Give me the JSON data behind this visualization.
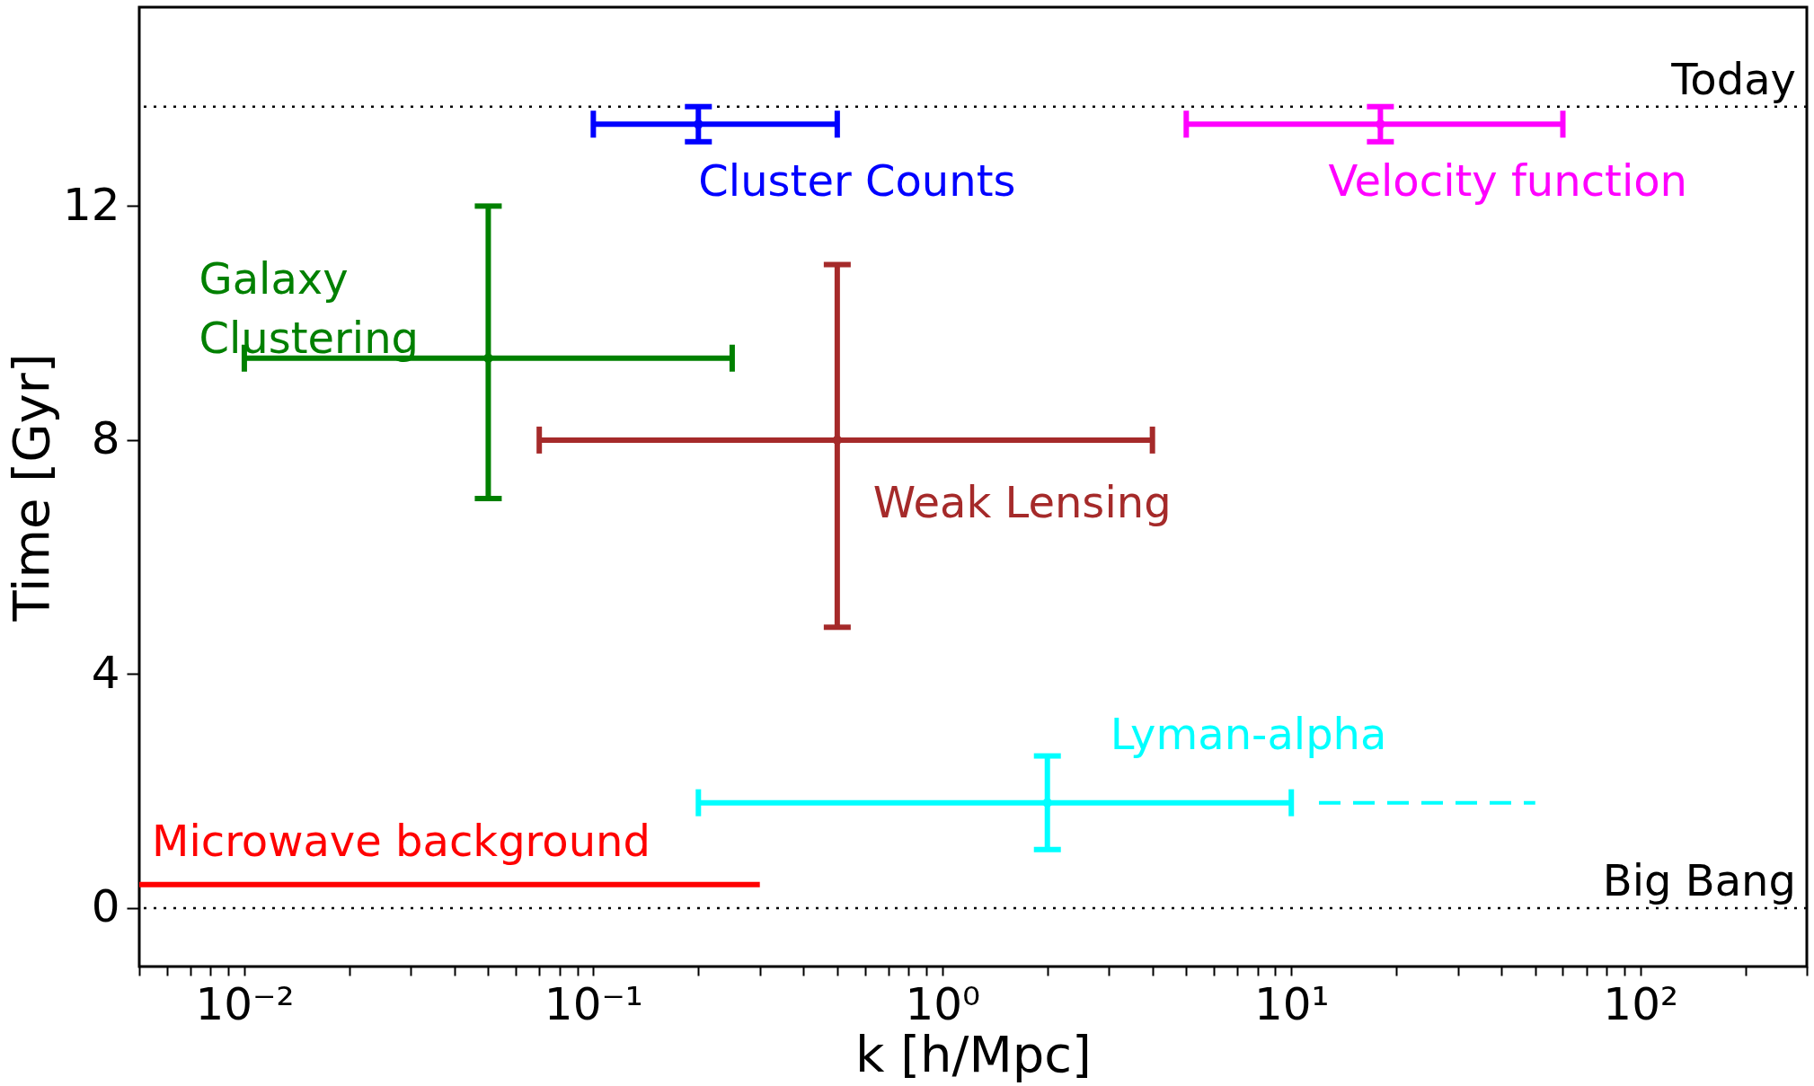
{
  "chart_data": {
    "type": "scatter",
    "xlabel": "k  [h/Mpc]",
    "ylabel": "Time  [Gyr]",
    "log": "x",
    "grid": false,
    "xlim": [
      0.005,
      300
    ],
    "ylim": [
      -1,
      15.4
    ],
    "yticks": [
      0,
      4,
      8,
      12
    ],
    "xticks": [
      {
        "value": 0.005,
        "label": null
      },
      {
        "value": 0.006,
        "label": null
      },
      {
        "value": 0.007,
        "label": null
      },
      {
        "value": 0.008,
        "label": null
      },
      {
        "value": 0.009,
        "label": null
      },
      {
        "value": 0.01,
        "label": "10⁻²"
      },
      {
        "value": 0.02,
        "label": null
      },
      {
        "value": 0.03,
        "label": null
      },
      {
        "value": 0.04,
        "label": null
      },
      {
        "value": 0.05,
        "label": null
      },
      {
        "value": 0.06,
        "label": null
      },
      {
        "value": 0.07,
        "label": null
      },
      {
        "value": 0.08,
        "label": null
      },
      {
        "value": 0.09,
        "label": null
      },
      {
        "value": 0.1,
        "label": "10⁻¹"
      },
      {
        "value": 0.2,
        "label": null
      },
      {
        "value": 0.3,
        "label": null
      },
      {
        "value": 0.4,
        "label": null
      },
      {
        "value": 0.5,
        "label": null
      },
      {
        "value": 0.6,
        "label": null
      },
      {
        "value": 0.7,
        "label": null
      },
      {
        "value": 0.8,
        "label": null
      },
      {
        "value": 0.9,
        "label": null
      },
      {
        "value": 1,
        "label": "10⁰"
      },
      {
        "value": 2,
        "label": null
      },
      {
        "value": 3,
        "label": null
      },
      {
        "value": 4,
        "label": null
      },
      {
        "value": 5,
        "label": null
      },
      {
        "value": 6,
        "label": null
      },
      {
        "value": 7,
        "label": null
      },
      {
        "value": 8,
        "label": null
      },
      {
        "value": 9,
        "label": null
      },
      {
        "value": 10,
        "label": "10¹"
      },
      {
        "value": 20,
        "label": null
      },
      {
        "value": 30,
        "label": null
      },
      {
        "value": 40,
        "label": null
      },
      {
        "value": 50,
        "label": null
      },
      {
        "value": 60,
        "label": null
      },
      {
        "value": 70,
        "label": null
      },
      {
        "value": 80,
        "label": null
      },
      {
        "value": 90,
        "label": null
      },
      {
        "value": 100,
        "label": "10²"
      },
      {
        "value": 200,
        "label": null
      },
      {
        "value": 300,
        "label": null
      }
    ],
    "ref_lines": [
      {
        "axis": "y",
        "value": 13.7,
        "label": "Today",
        "color": "#000000",
        "line_style": "dotted"
      },
      {
        "axis": "y",
        "value": 0,
        "label": "Big Bang",
        "color": "#000000",
        "line_style": "dotted"
      }
    ],
    "series": [
      {
        "name": "Cluster Counts",
        "color": "#0000ff",
        "x": [
          0.2
        ],
        "values": [
          13.4
        ],
        "errors": [
          [
            13.1,
            13.7
          ]
        ],
        "xerrors": [
          [
            0.1,
            0.5
          ]
        ]
      },
      {
        "name": "Velocity function",
        "color": "#ff00ff",
        "x": [
          18
        ],
        "values": [
          13.4
        ],
        "errors": [
          [
            13.1,
            13.7
          ]
        ],
        "xerrors": [
          [
            5,
            60
          ]
        ]
      },
      {
        "name": "Galaxy Clustering",
        "color": "#008000",
        "x": [
          0.05
        ],
        "values": [
          9.4
        ],
        "errors": [
          [
            7.0,
            12.0
          ]
        ],
        "xerrors": [
          [
            0.01,
            0.25
          ]
        ]
      },
      {
        "name": "Weak Lensing",
        "color": "#a52a2a",
        "x": [
          0.5
        ],
        "values": [
          8.0
        ],
        "errors": [
          [
            4.8,
            11.0
          ]
        ],
        "xerrors": [
          [
            0.07,
            4
          ]
        ]
      },
      {
        "name": "Lyman-alpha",
        "color": "#00ffff",
        "x": [
          2.0
        ],
        "values": [
          1.8
        ],
        "errors": [
          [
            1.0,
            2.6
          ]
        ],
        "xerrors": [
          [
            0.2,
            10
          ]
        ]
      },
      {
        "name": "Microwave background",
        "color": "#ff0000",
        "type": "line",
        "x": [
          0.005,
          0.3
        ],
        "values": [
          0.4,
          0.4
        ]
      },
      {
        "color": "#00ffff",
        "type": "line",
        "x": [
          12,
          50
        ],
        "values": [
          1.8,
          1.8
        ],
        "line_style": "dashed"
      }
    ]
  }
}
